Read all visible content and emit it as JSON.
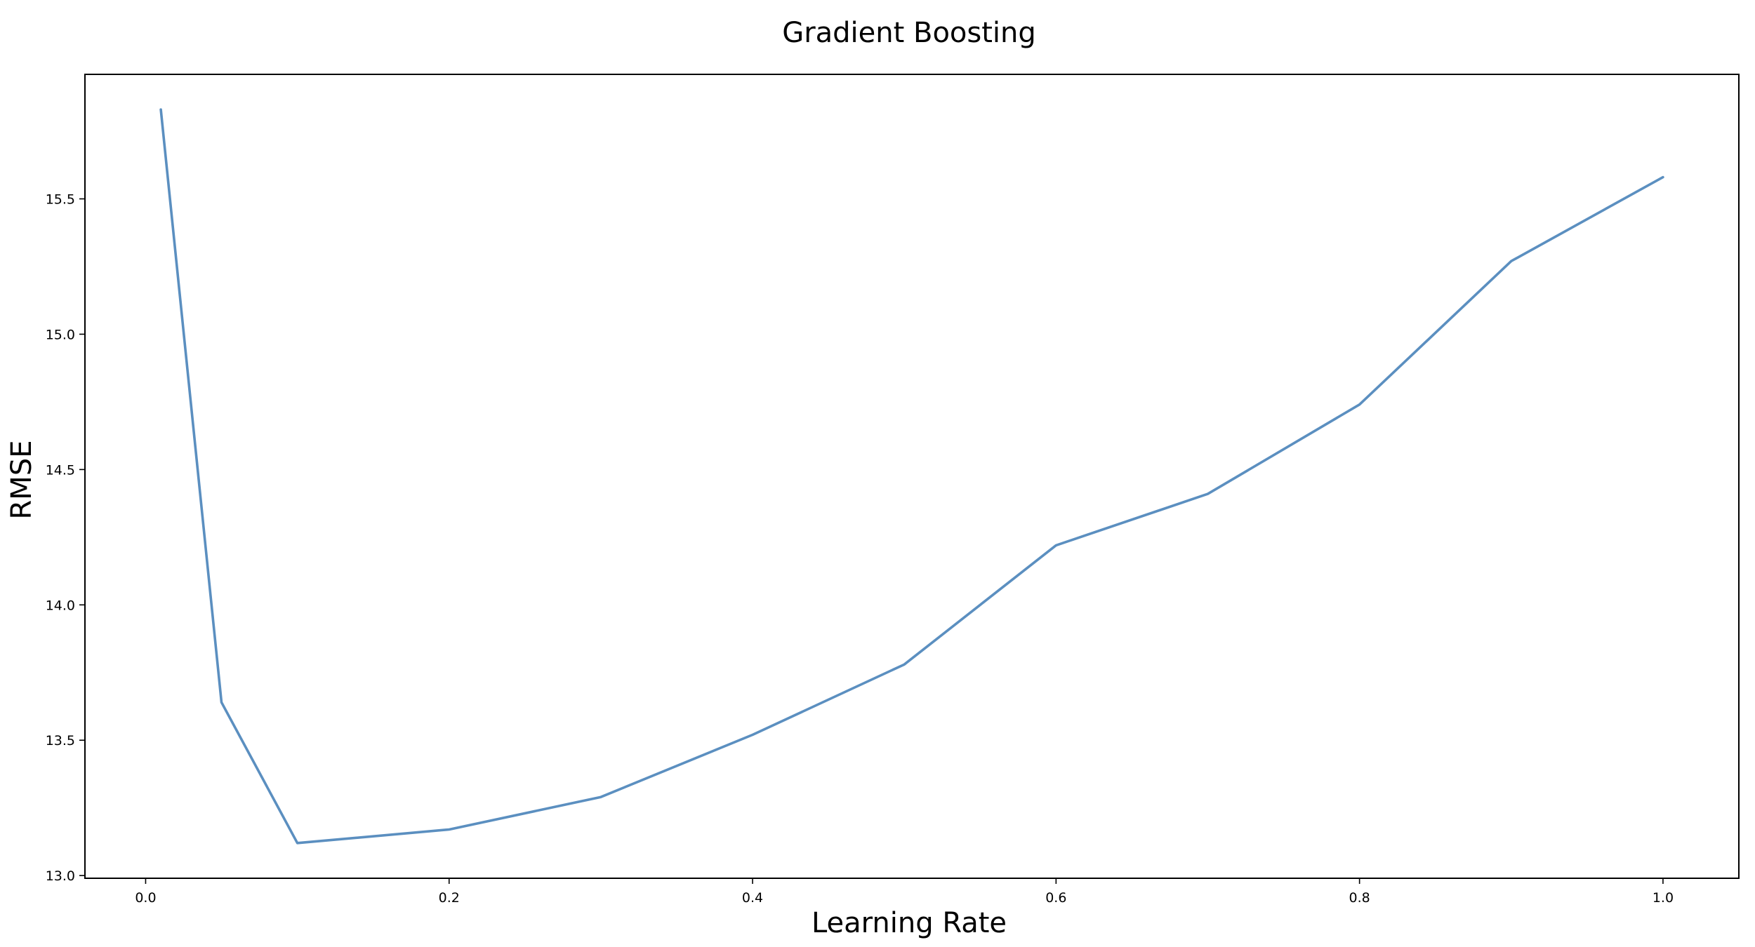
{
  "chart_data": {
    "type": "line",
    "title": "Gradient Boosting",
    "xlabel": "Learning Rate",
    "ylabel": "RMSE",
    "xlim": [
      -0.04,
      1.05
    ],
    "ylim": [
      12.99,
      15.96
    ],
    "x_ticks": [
      0.0,
      0.2,
      0.4,
      0.6,
      0.8,
      1.0
    ],
    "x_tick_labels": [
      "0.0",
      "0.2",
      "0.4",
      "0.6",
      "0.8",
      "1.0"
    ],
    "y_ticks": [
      13.0,
      13.5,
      14.0,
      14.5,
      15.0,
      15.5
    ],
    "y_tick_labels": [
      "13.0",
      "13.5",
      "14.0",
      "14.5",
      "15.0",
      "15.5"
    ],
    "grid": false,
    "legend": "none",
    "series": [
      {
        "x": [
          0.01,
          0.05,
          0.1,
          0.2,
          0.3,
          0.4,
          0.5,
          0.6,
          0.7,
          0.8,
          0.9,
          1.0
        ],
        "values": [
          15.83,
          13.64,
          13.12,
          13.17,
          13.29,
          13.52,
          13.78,
          14.22,
          14.41,
          14.74,
          15.27,
          15.58
        ],
        "color": "#5b8fc0"
      }
    ]
  }
}
